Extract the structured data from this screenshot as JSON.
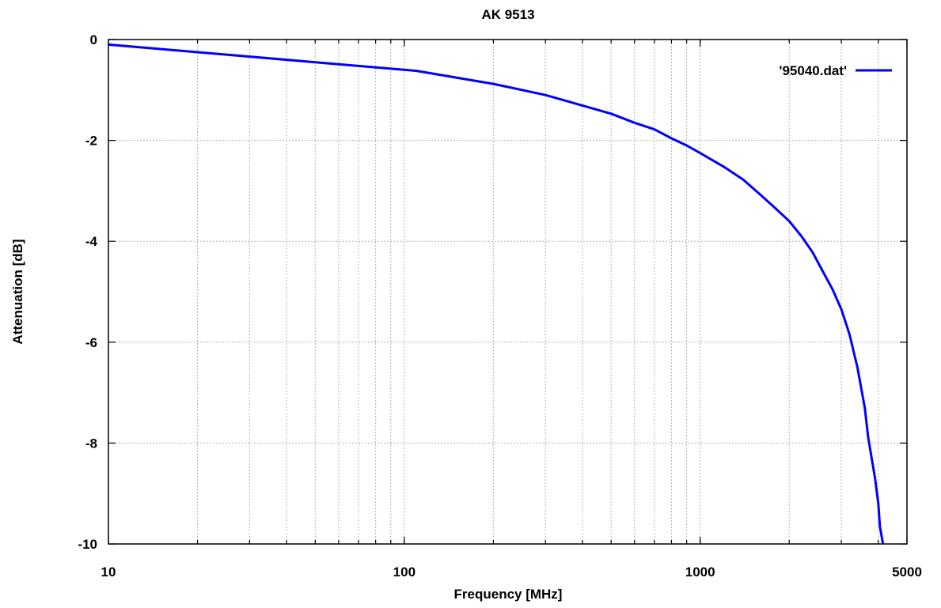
{
  "chart_data": {
    "type": "line",
    "title": "AK 9513",
    "xlabel": "Frequency [MHz]",
    "ylabel": "Attenuation [dB]",
    "x_scale": "log",
    "xlim": [
      10,
      5000
    ],
    "ylim": [
      -10,
      0
    ],
    "x_ticks": [
      {
        "value": 10,
        "label": "10"
      },
      {
        "value": 100,
        "label": "100"
      },
      {
        "value": 1000,
        "label": "1000"
      },
      {
        "value": 5000,
        "label": "5000"
      }
    ],
    "y_ticks": [
      {
        "value": 0,
        "label": "0"
      },
      {
        "value": -2,
        "label": "-2"
      },
      {
        "value": -4,
        "label": "-4"
      },
      {
        "value": -6,
        "label": "-6"
      },
      {
        "value": -8,
        "label": "-8"
      },
      {
        "value": -10,
        "label": "-10"
      }
    ],
    "grid": true,
    "legend": {
      "position": "top-right"
    },
    "series": [
      {
        "name": "'95040.dat'",
        "color": "#0000ff",
        "x": [
          10,
          20,
          50,
          110,
          200,
          300,
          500,
          600,
          700,
          800,
          900,
          1000,
          1200,
          1400,
          1600,
          1800,
          2000,
          2200,
          2400,
          2600,
          2800,
          3000,
          3200,
          3400,
          3600,
          3700,
          3800,
          3900,
          4000,
          4050,
          4150
        ],
        "y": [
          -0.1,
          -0.25,
          -0.45,
          -0.62,
          -0.88,
          -1.1,
          -1.47,
          -1.65,
          -1.78,
          -1.96,
          -2.1,
          -2.25,
          -2.52,
          -2.78,
          -3.08,
          -3.35,
          -3.6,
          -3.9,
          -4.22,
          -4.6,
          -4.95,
          -5.35,
          -5.85,
          -6.5,
          -7.3,
          -7.9,
          -8.3,
          -8.7,
          -9.2,
          -9.65,
          -10.0
        ]
      }
    ]
  }
}
